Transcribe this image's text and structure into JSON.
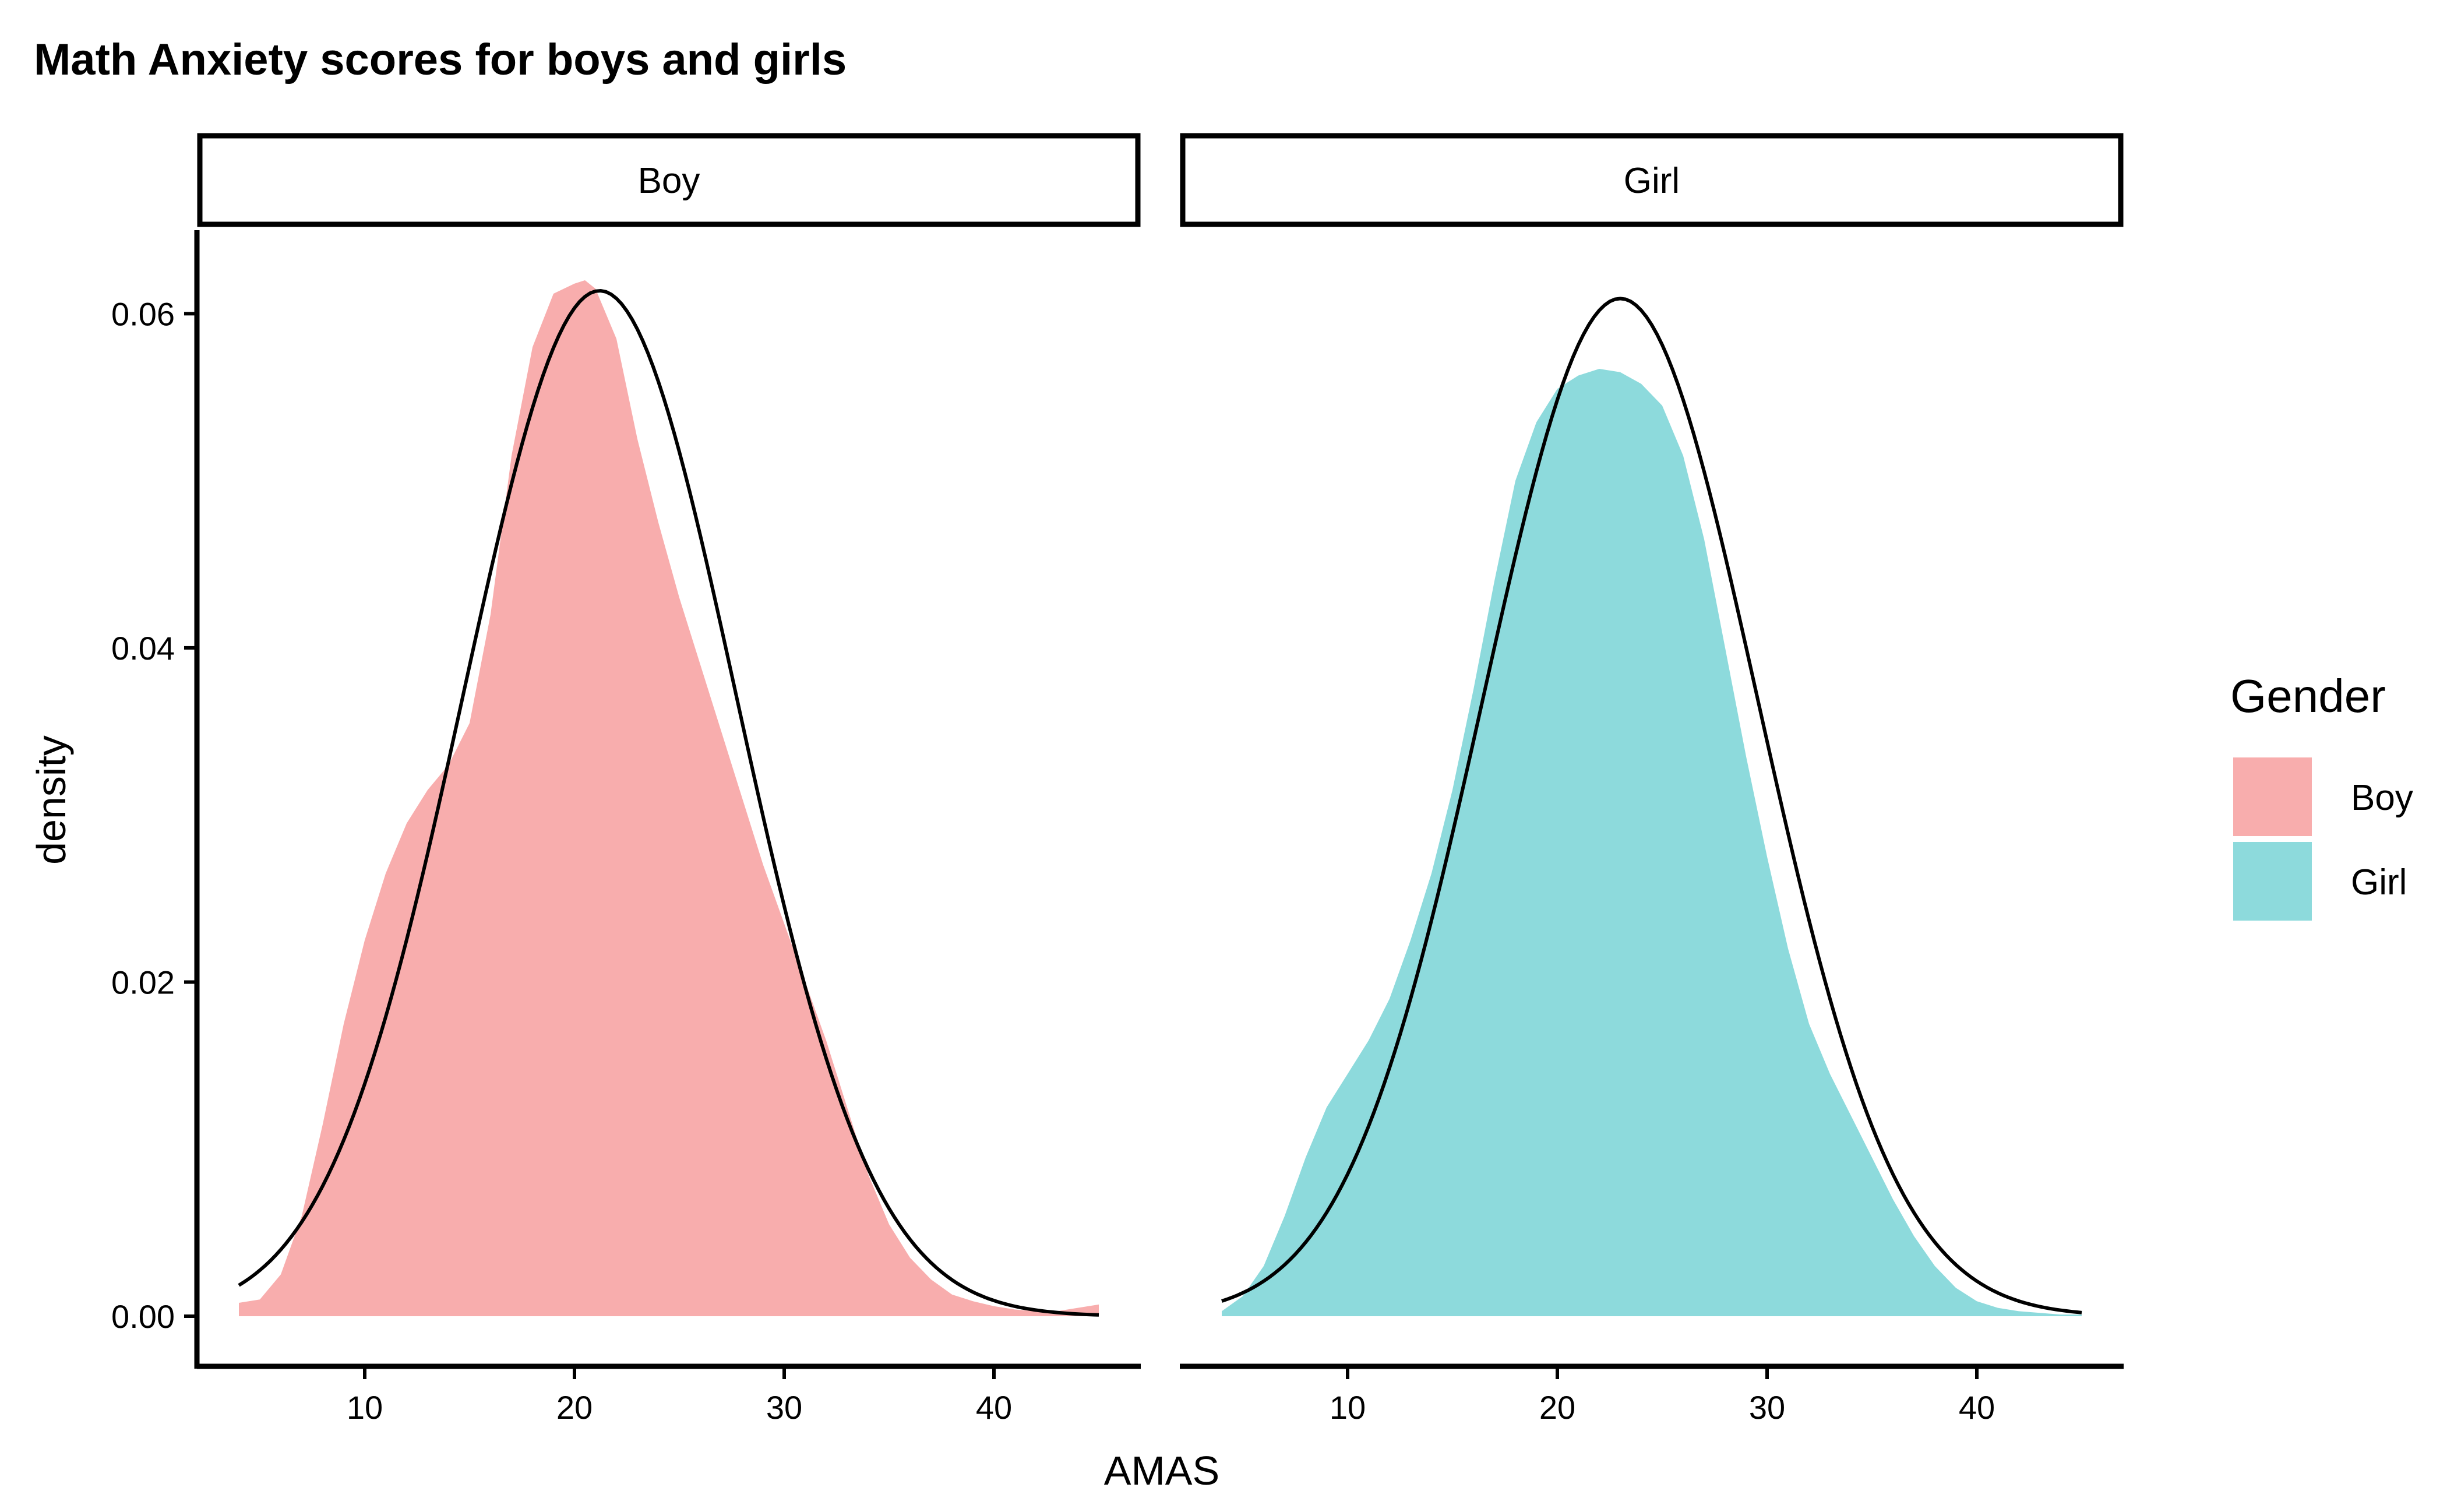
{
  "chart_data": {
    "type": "area",
    "title": "Math Anxiety scores for boys and girls",
    "xlabel": "AMAS",
    "ylabel": "density",
    "xlim": [
      2,
      47
    ],
    "ylim": [
      -0.003,
      0.065
    ],
    "x_ticks": [
      10,
      20,
      30,
      40
    ],
    "x_tick_labels": [
      "10",
      "20",
      "30",
      "40"
    ],
    "y_ticks": [
      0,
      0.02,
      0.04,
      0.06
    ],
    "y_tick_labels": [
      "0.00",
      "0.02",
      "0.04",
      "0.06"
    ],
    "grid": false,
    "legend": {
      "title": "Gender",
      "position": "right",
      "items": [
        {
          "label": "Boy",
          "color": "#F8ADAD"
        },
        {
          "label": "Girl",
          "color": "#8DDADC"
        }
      ]
    },
    "panels": [
      {
        "label": "Boy",
        "fill_color": "#F8ADAD",
        "density": {
          "x": [
            4,
            5,
            6,
            7,
            8,
            9,
            10,
            11,
            12,
            13,
            14,
            15,
            16,
            17,
            18,
            19,
            20,
            20.5,
            21,
            22,
            23,
            24,
            25,
            26,
            27,
            28,
            29,
            30,
            31,
            32,
            33,
            34,
            35,
            36,
            37,
            38,
            39,
            40,
            41,
            42,
            43,
            44,
            45
          ],
          "y": [
            0.0008,
            0.001,
            0.0025,
            0.006,
            0.0115,
            0.0175,
            0.0225,
            0.0265,
            0.0295,
            0.0315,
            0.033,
            0.0355,
            0.042,
            0.0515,
            0.058,
            0.0612,
            0.0618,
            0.062,
            0.0615,
            0.0585,
            0.0525,
            0.0475,
            0.043,
            0.039,
            0.035,
            0.031,
            0.027,
            0.0235,
            0.02,
            0.0165,
            0.0125,
            0.0085,
            0.0055,
            0.0035,
            0.0022,
            0.0013,
            0.0009,
            0.0006,
            0.0004,
            0.0003,
            0.0003,
            0.0005,
            0.0007
          ]
        },
        "normal_curve": {
          "mean": 21.2,
          "sd": 6.5
        }
      },
      {
        "label": "Girl",
        "fill_color": "#8DDADC",
        "density": {
          "x": [
            4,
            5,
            6,
            7,
            8,
            9,
            10,
            11,
            12,
            13,
            14,
            15,
            16,
            17,
            18,
            19,
            20,
            21,
            22,
            23,
            24,
            25,
            26,
            27,
            28,
            29,
            30,
            31,
            32,
            33,
            34,
            35,
            36,
            37,
            38,
            39,
            40,
            41,
            42,
            43,
            44,
            45
          ],
          "y": [
            0.0003,
            0.0012,
            0.003,
            0.006,
            0.0095,
            0.0125,
            0.0145,
            0.0165,
            0.019,
            0.0225,
            0.0265,
            0.0315,
            0.0375,
            0.044,
            0.05,
            0.0535,
            0.0555,
            0.0563,
            0.0567,
            0.0565,
            0.0558,
            0.0545,
            0.0515,
            0.0465,
            0.04,
            0.0335,
            0.0275,
            0.022,
            0.0175,
            0.0145,
            0.012,
            0.0095,
            0.007,
            0.0048,
            0.003,
            0.0017,
            0.0009,
            0.0005,
            0.0003,
            0.0002,
            0.0001,
            0.0001
          ]
        },
        "normal_curve": {
          "mean": 23.0,
          "sd": 6.55
        }
      }
    ]
  }
}
